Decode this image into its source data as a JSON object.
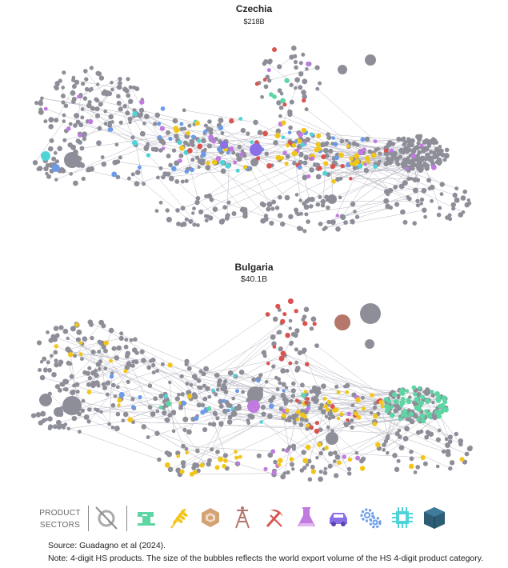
{
  "panels": [
    {
      "title": "Czechia",
      "value": "$218B"
    },
    {
      "title": "Bulgaria",
      "value": "$40.1B"
    }
  ],
  "legend": {
    "label_line1": "PRODUCT",
    "label_line2": "SECTORS",
    "sectors": [
      {
        "icon": "services-crossed-icon",
        "color": "#9a9a9a"
      },
      {
        "icon": "textiles-sewing-machine-icon",
        "color": "#5dd6a4"
      },
      {
        "icon": "agriculture-wheat-icon",
        "color": "#f2c618"
      },
      {
        "icon": "stone-gem-icon",
        "color": "#d4a373"
      },
      {
        "icon": "minerals-oil-rig-icon",
        "color": "#b5776a"
      },
      {
        "icon": "metals-pickaxe-icon",
        "color": "#d9534f"
      },
      {
        "icon": "chemicals-flask-icon",
        "color": "#c07ae0"
      },
      {
        "icon": "vehicles-car-icon",
        "color": "#8b6fe8"
      },
      {
        "icon": "machinery-gears-icon",
        "color": "#6a9be8"
      },
      {
        "icon": "electronics-chip-icon",
        "color": "#4fd3d9"
      },
      {
        "icon": "other-box-icon",
        "color": "#2d5c75"
      }
    ]
  },
  "source": "Source: Guadagno et al (2024).",
  "note": "Note: 4-digit HS products. The size of the bubbles reflects the world export volume of the HS 4-digit product category."
}
